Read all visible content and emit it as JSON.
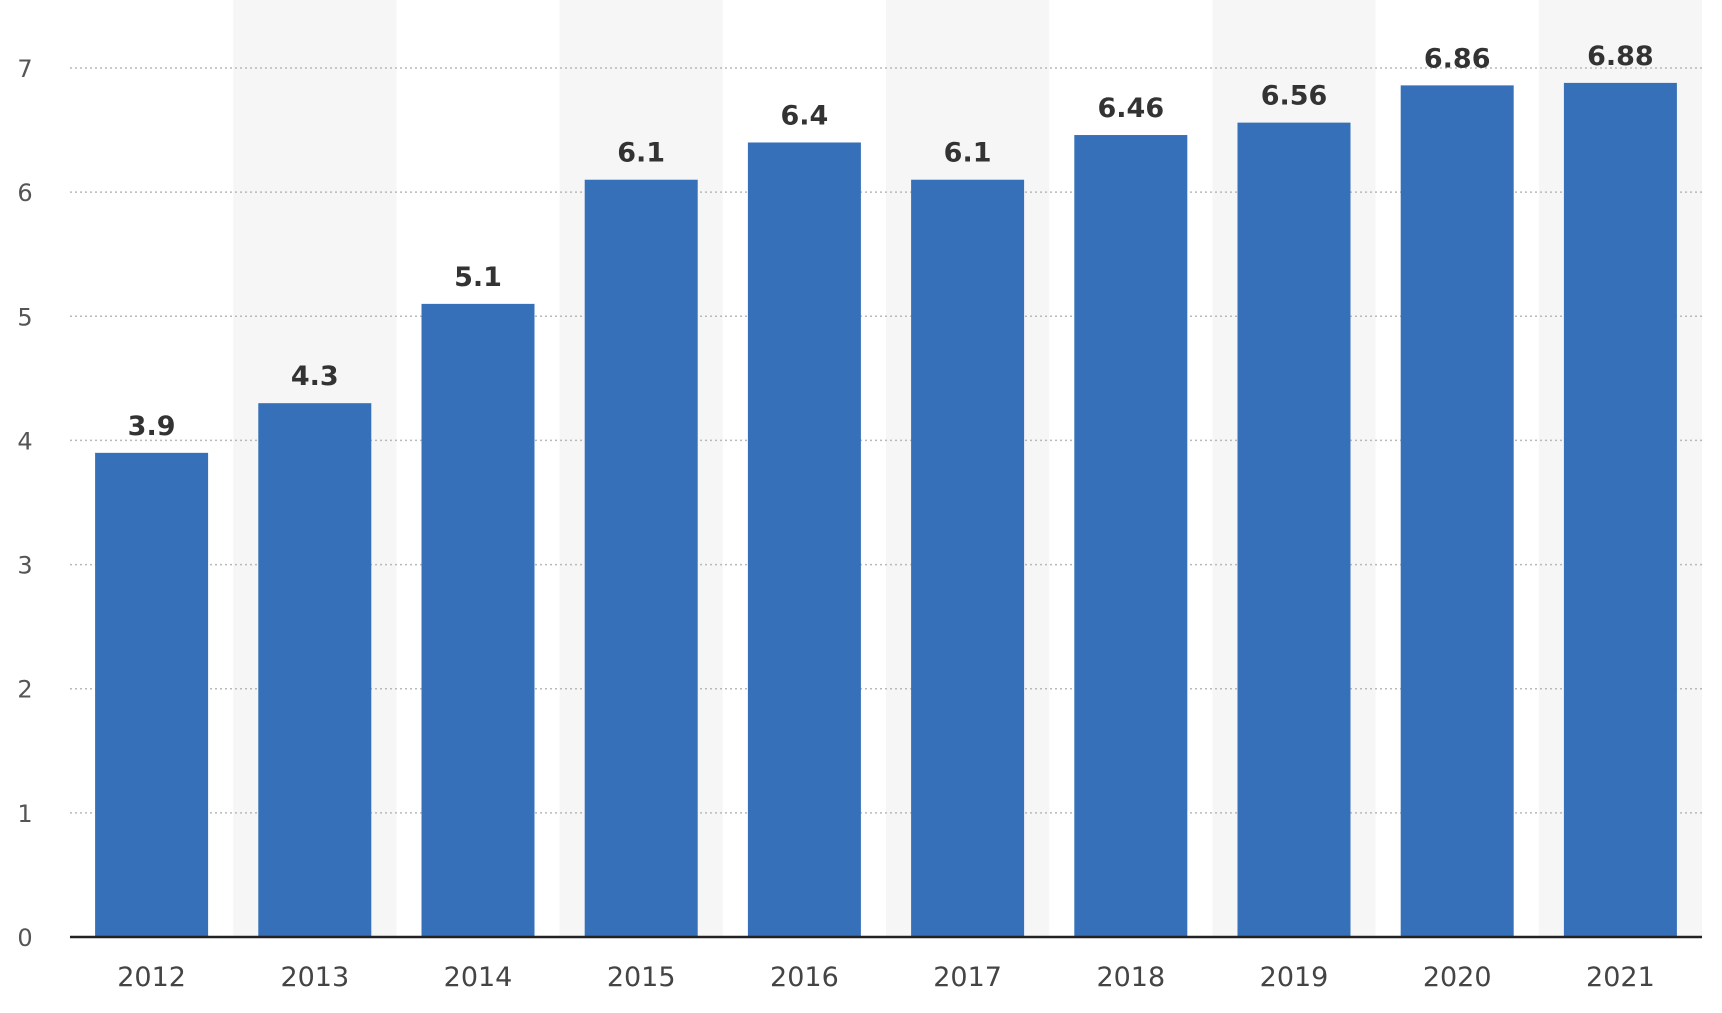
{
  "chart_data": {
    "type": "bar",
    "categories": [
      "2012",
      "2013",
      "2014",
      "2015",
      "2016",
      "2017",
      "2018",
      "2019",
      "2020",
      "2021"
    ],
    "values": [
      3.9,
      4.3,
      5.1,
      6.1,
      6.4,
      6.1,
      6.46,
      6.56,
      6.86,
      6.88
    ],
    "data_labels": [
      "3.9",
      "4.3",
      "5.1",
      "6.1",
      "6.4",
      "6.1",
      "6.46",
      "6.56",
      "6.86",
      "6.88"
    ],
    "y_ticks": [
      0,
      1,
      2,
      3,
      4,
      5,
      6,
      7
    ],
    "ylim": [
      0,
      7
    ],
    "grid": true,
    "legend": "none",
    "title": "",
    "xlabel": "",
    "ylabel": "",
    "bar_color": "#3670b8",
    "alt_band_color": "#f6f6f6"
  }
}
